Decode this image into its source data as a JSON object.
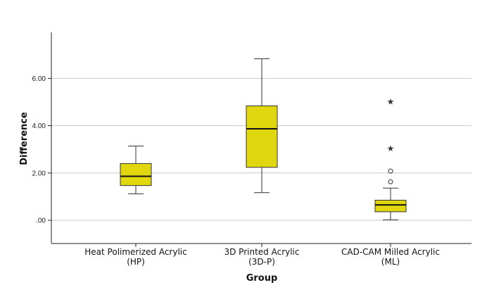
{
  "chart_data": {
    "type": "boxplot",
    "xlabel": "Group",
    "ylabel": "Difference",
    "ylim": [
      -1.0,
      7.9
    ],
    "yticks": [
      0,
      2,
      4,
      6
    ],
    "ytick_labels": [
      ".00",
      "2.00",
      "4.00",
      "6.00"
    ],
    "grid": "horizontal",
    "colors": {
      "box_fill": "#e1d70f",
      "box_stroke": "#333333",
      "gridline": "#c8c8c8",
      "axis": "#222222"
    },
    "categories": [
      {
        "line1": "Heat Polimerized Acrylic",
        "line2": "(HP)"
      },
      {
        "line1": "3D Printed Acrylic",
        "line2": "(3D-P)"
      },
      {
        "line1": "CAD-CAM Milled Acrylic",
        "line2": "(ML)"
      }
    ],
    "boxes": [
      {
        "whisker_low": 1.12,
        "q1": 1.47,
        "median": 1.86,
        "q3": 2.4,
        "whisker_high": 3.14,
        "outliers": [],
        "extremes": []
      },
      {
        "whisker_low": 1.17,
        "q1": 2.24,
        "median": 3.87,
        "q3": 4.84,
        "whisker_high": 6.83,
        "outliers": [],
        "extremes": []
      },
      {
        "whisker_low": 0.02,
        "q1": 0.36,
        "median": 0.65,
        "q3": 0.85,
        "whisker_high": 1.36,
        "outliers": [
          1.63,
          2.08
        ],
        "extremes": [
          3.06,
          5.04
        ]
      }
    ]
  }
}
